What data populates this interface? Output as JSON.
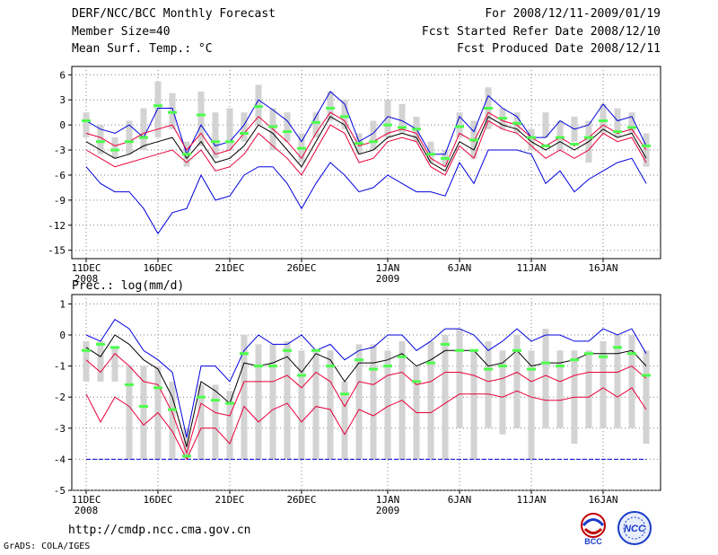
{
  "header": {
    "title": "DERF/NCC/BCC Monthly Forecast",
    "member_size": "Member Size=40",
    "variable": "Mean Surf. Temp.: °C",
    "period": "For 2008/12/11-2009/01/19",
    "fcst_started": "Fcst Started Refer Date 2008/12/10",
    "fcst_produced": "Fcst Produced Date 2008/12/11"
  },
  "footer": {
    "url": "http://cmdp.ncc.cma.gov.cn",
    "grads": "GrADS: COLA/IGES",
    "logo_bcc": "BCC",
    "logo_ncc": "NCC"
  },
  "colors": {
    "box": "#d3d3d3",
    "median": "#4cff4c",
    "mean": "#000000",
    "inner": "#e8003a",
    "outer": "#0000dd",
    "grid": "#808080"
  },
  "chart_data": [
    {
      "type": "box-ensemble",
      "title": "Mean Surf. Temp.: °C",
      "xlabel": "",
      "ylabel": "°C",
      "ylim": [
        -16,
        7
      ],
      "yticks": [
        6,
        3,
        0,
        -3,
        -6,
        -9,
        -12,
        -15
      ],
      "grid": true,
      "xticks": [
        {
          "day": 1,
          "label": "11DEC",
          "sublabel": "2008"
        },
        {
          "day": 6,
          "label": "16DEC",
          "sublabel": ""
        },
        {
          "day": 11,
          "label": "21DEC",
          "sublabel": ""
        },
        {
          "day": 16,
          "label": "26DEC",
          "sublabel": ""
        },
        {
          "day": 22,
          "label": "1JAN",
          "sublabel": "2009"
        },
        {
          "day": 27,
          "label": "6JAN",
          "sublabel": ""
        },
        {
          "day": 32,
          "label": "11JAN",
          "sublabel": ""
        },
        {
          "day": 37,
          "label": "16JAN",
          "sublabel": ""
        }
      ],
      "days": [
        1,
        2,
        3,
        4,
        5,
        6,
        7,
        8,
        9,
        10,
        11,
        12,
        13,
        14,
        15,
        16,
        17,
        18,
        19,
        20,
        21,
        22,
        23,
        24,
        25,
        26,
        27,
        28,
        29,
        30,
        31,
        32,
        33,
        34,
        35,
        36,
        37,
        38,
        39,
        40
      ],
      "box_low": [
        -1.5,
        -3.5,
        -4,
        -3.5,
        -3,
        -1.5,
        -0.5,
        -5,
        -2.5,
        -4,
        -3,
        -2,
        0,
        -3,
        -2,
        -4.5,
        -1.5,
        0.5,
        -0.5,
        -3.5,
        -3,
        -1.5,
        -1,
        -2,
        -4.5,
        -5,
        -1.5,
        -4,
        -0.5,
        -0.5,
        -1,
        -3,
        -1.5,
        -3,
        -2,
        -4.5,
        -1,
        -1.5,
        -1,
        -5
      ],
      "box_high": [
        1.5,
        0,
        -1.5,
        0.5,
        2,
        5.2,
        3.8,
        -2,
        4,
        1.5,
        2,
        1.5,
        4.8,
        2,
        1.5,
        -1,
        1.5,
        4,
        3,
        -1,
        0.5,
        3,
        2.5,
        1,
        -2,
        -3,
        1.5,
        0.5,
        4.5,
        2,
        1.5,
        -0.5,
        1.5,
        0.5,
        1,
        0.5,
        2.5,
        2,
        1.5,
        -1
      ],
      "median": [
        0.5,
        -2,
        -3,
        -2,
        -1.5,
        2.3,
        1.5,
        -3.5,
        1.2,
        -2,
        -2,
        -1,
        2.2,
        -0.2,
        -0.8,
        -2.8,
        0.3,
        2,
        1,
        -2.2,
        -2,
        0,
        -0.3,
        -0.5,
        -3.5,
        -4,
        -0.2,
        -1.8,
        2,
        0.8,
        0.2,
        -1.5,
        -2.5,
        -1.5,
        -2.3,
        -1.5,
        0.5,
        -0.8,
        -0.3,
        -2.5
      ],
      "series": [
        {
          "name": "max",
          "color": "outer",
          "values": [
            0.5,
            -0.5,
            -1,
            0,
            -1.5,
            2,
            2,
            -3.5,
            0,
            -2.5,
            -2,
            0,
            3,
            1.8,
            0.5,
            -2,
            1,
            4,
            2.5,
            -2,
            -1,
            1,
            0.5,
            -0.5,
            -3.5,
            -3.5,
            1,
            -0.8,
            3.5,
            2,
            1,
            -1.5,
            -1.5,
            0.5,
            -0.5,
            0,
            2.5,
            0.5,
            1,
            -2.5
          ]
        },
        {
          "name": "upper",
          "color": "inner",
          "values": [
            -1,
            -1.5,
            -2.5,
            -2,
            -1,
            -0.5,
            0,
            -3,
            -1,
            -3.5,
            -3,
            -1,
            1,
            -0.5,
            -2,
            -4,
            -1,
            1.5,
            0.5,
            -2.5,
            -2,
            -1,
            -0.5,
            -1,
            -4,
            -5,
            -1,
            -2,
            1.5,
            0.5,
            0,
            -1.5,
            -2.5,
            -1.5,
            -2.5,
            -1.5,
            0,
            -1,
            -0.5,
            -3
          ]
        },
        {
          "name": "mean",
          "color": "mean",
          "values": [
            -2,
            -3,
            -4,
            -3.5,
            -2.5,
            -2,
            -1.5,
            -4,
            -2,
            -4.5,
            -4,
            -2.5,
            0,
            -1,
            -3,
            -5,
            -2,
            1,
            0,
            -3.5,
            -3,
            -1.5,
            -1,
            -1.5,
            -4.5,
            -5.5,
            -2,
            -3,
            1,
            0,
            -0.5,
            -2,
            -3,
            -2,
            -3,
            -2,
            -0.5,
            -1.5,
            -1,
            -4
          ]
        },
        {
          "name": "lower",
          "color": "inner",
          "values": [
            -3,
            -4,
            -5,
            -4.5,
            -4,
            -3.5,
            -3,
            -4.5,
            -3,
            -5.5,
            -5,
            -3.5,
            -1,
            -2.5,
            -4,
            -6,
            -3,
            0,
            -1,
            -4.5,
            -4,
            -2,
            -1.5,
            -2,
            -5,
            -6,
            -2.5,
            -4,
            0.5,
            -0.5,
            -1,
            -2.5,
            -4,
            -3,
            -4,
            -3,
            -1,
            -2,
            -1.5,
            -4.5
          ]
        },
        {
          "name": "min",
          "color": "outer",
          "values": [
            -5,
            -7,
            -8,
            -8,
            -10,
            -13,
            -10.5,
            -10,
            -6,
            -9,
            -8.5,
            -6,
            -5,
            -5,
            -7,
            -10,
            -7,
            -4.5,
            -6,
            -8,
            -7.5,
            -6,
            -7,
            -8,
            -8,
            -8.5,
            -4.5,
            -7,
            -3,
            -3,
            -3,
            -3.5,
            -7,
            -5.5,
            -8,
            -6.5,
            -5.5,
            -4.5,
            -4,
            -7
          ]
        }
      ]
    },
    {
      "type": "box-ensemble",
      "title": "Prec.: log(mm/d)",
      "xlabel": "",
      "ylabel": "log(mm/d)",
      "ylim": [
        -5,
        1.3
      ],
      "yticks": [
        1,
        0,
        -1,
        -2,
        -3,
        -4,
        -5
      ],
      "grid": true,
      "baseline": -4,
      "xticks": [
        {
          "day": 1,
          "label": "11DEC",
          "sublabel": "2008"
        },
        {
          "day": 6,
          "label": "16DEC",
          "sublabel": ""
        },
        {
          "day": 11,
          "label": "21DEC",
          "sublabel": ""
        },
        {
          "day": 16,
          "label": "26DEC",
          "sublabel": ""
        },
        {
          "day": 22,
          "label": "1JAN",
          "sublabel": "2009"
        },
        {
          "day": 27,
          "label": "6JAN",
          "sublabel": ""
        },
        {
          "day": 32,
          "label": "11JAN",
          "sublabel": ""
        },
        {
          "day": 37,
          "label": "16JAN",
          "sublabel": ""
        }
      ],
      "days": [
        1,
        2,
        3,
        4,
        5,
        6,
        7,
        8,
        9,
        10,
        11,
        12,
        13,
        14,
        15,
        16,
        17,
        18,
        19,
        20,
        21,
        22,
        23,
        24,
        25,
        26,
        27,
        28,
        29,
        30,
        31,
        32,
        33,
        34,
        35,
        36,
        37,
        38,
        39,
        40
      ],
      "box_low": [
        -1.5,
        -1.5,
        -1.5,
        -4,
        -4,
        -4,
        -4,
        -4,
        -4,
        -4,
        -4,
        -4,
        -4,
        -4,
        -4,
        -4,
        -4,
        -4,
        -4,
        -4,
        -4,
        -4,
        -4,
        -4,
        -4,
        -4,
        -3,
        -4,
        -3,
        -3.2,
        -3,
        -4,
        -3,
        -3,
        -3.5,
        -3,
        -3,
        -3,
        -3,
        -3.5
      ],
      "box_high": [
        -0.2,
        -0.2,
        -0.4,
        -1,
        -1,
        -1,
        -1.5,
        -3,
        -1.6,
        -1.6,
        -1.8,
        0,
        -0.3,
        -0.3,
        -0.2,
        -0.5,
        -0.5,
        -0.5,
        -1.5,
        -0.3,
        -0.3,
        -0.5,
        -0.2,
        -1,
        -0.2,
        0,
        0.2,
        -0.5,
        -0.2,
        -0.5,
        0,
        -0.5,
        0.2,
        -0.5,
        -0.5,
        -0.5,
        -0.2,
        0,
        0,
        -0.5
      ],
      "median": [
        -0.5,
        -0.3,
        -0.4,
        -1.6,
        -2.3,
        -1.7,
        -2.4,
        -3.9,
        -2,
        -2.1,
        -2.2,
        -0.6,
        -1,
        -1,
        -0.5,
        -1.3,
        -0.5,
        -1,
        -1.9,
        -0.8,
        -1.1,
        -1,
        -0.7,
        -1.5,
        -0.9,
        -0.3,
        -0.5,
        -0.5,
        -1.1,
        -1,
        -0.5,
        -1.1,
        -0.9,
        -1,
        -0.8,
        -0.6,
        -0.7,
        -0.4,
        -0.6,
        -1.3
      ],
      "series": [
        {
          "name": "max",
          "color": "outer",
          "values": [
            0,
            -0.2,
            0.5,
            0.2,
            -0.5,
            -0.8,
            -1.2,
            -3.3,
            -1,
            -1,
            -1.5,
            -0.5,
            0,
            -0.3,
            -0.3,
            0,
            -0.5,
            -0.3,
            -0.8,
            -0.5,
            -0.4,
            0,
            0,
            -0.5,
            -0.2,
            0.2,
            0.2,
            0,
            -0.5,
            -0.2,
            0.2,
            -0.2,
            0,
            0,
            -0.2,
            -0.2,
            0.2,
            0,
            0.2,
            -0.6
          ]
        },
        {
          "name": "mean",
          "color": "mean",
          "values": [
            -0.4,
            -0.7,
            0,
            -0.3,
            -0.8,
            -1.1,
            -2,
            -3.6,
            -1.5,
            -1.8,
            -2.2,
            -0.9,
            -1,
            -0.9,
            -0.7,
            -1.2,
            -0.6,
            -0.8,
            -1.5,
            -0.9,
            -0.9,
            -0.8,
            -0.6,
            -1,
            -0.8,
            -0.5,
            -0.5,
            -0.5,
            -1,
            -0.9,
            -0.5,
            -1,
            -0.9,
            -0.9,
            -0.8,
            -0.6,
            -0.6,
            -0.6,
            -0.5,
            -1
          ]
        },
        {
          "name": "upper",
          "color": "inner",
          "values": [
            -0.8,
            -1.2,
            -0.6,
            -1,
            -1.5,
            -1.6,
            -2.5,
            -3.8,
            -2.2,
            -2.5,
            -2.6,
            -1.5,
            -1.5,
            -1.5,
            -1.3,
            -1.7,
            -1.2,
            -1.5,
            -2.3,
            -1.5,
            -1.6,
            -1.3,
            -1.2,
            -1.6,
            -1.5,
            -1.2,
            -1.2,
            -1.3,
            -1.5,
            -1.4,
            -1.2,
            -1.5,
            -1.3,
            -1.5,
            -1.3,
            -1.2,
            -1.2,
            -1.2,
            -1,
            -1.4
          ]
        },
        {
          "name": "lower",
          "color": "inner",
          "values": [
            -1.9,
            -2.8,
            -2,
            -2.3,
            -2.9,
            -2.5,
            -3.1,
            -4,
            -3,
            -3,
            -3.5,
            -2.3,
            -2.8,
            -2.4,
            -2.2,
            -2.8,
            -2.3,
            -2.4,
            -3.2,
            -2.4,
            -2.6,
            -2.3,
            -2.1,
            -2.5,
            -2.5,
            -2.2,
            -1.9,
            -1.9,
            -1.9,
            -2,
            -1.8,
            -2,
            -2.1,
            -2.1,
            -2,
            -2,
            -1.7,
            -2,
            -1.7,
            -2.4
          ]
        }
      ]
    }
  ]
}
